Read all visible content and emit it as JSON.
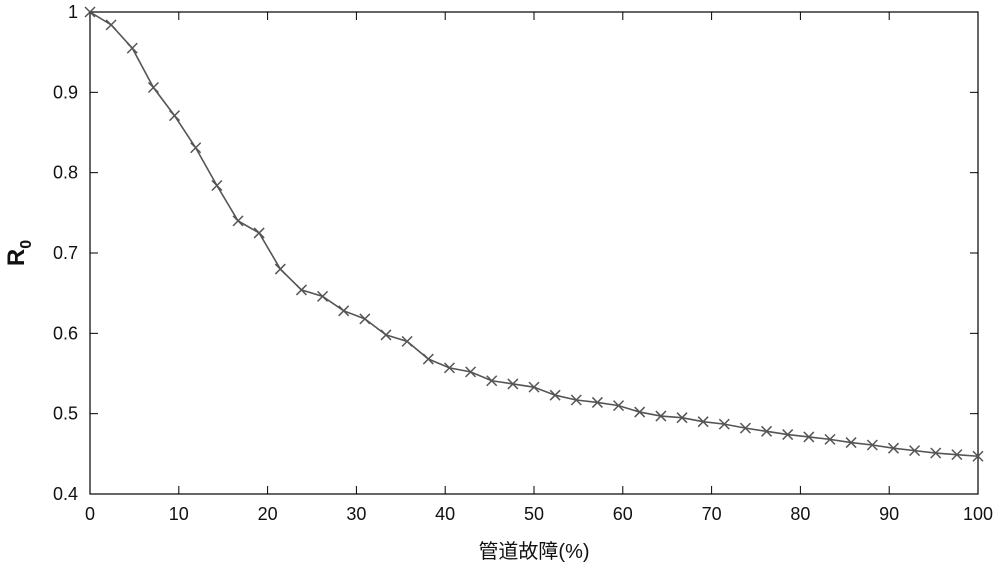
{
  "chart_data": {
    "type": "line",
    "title": "",
    "xlabel": "管道故障(%)",
    "ylabel": {
      "main": "R",
      "subscript": "0"
    },
    "xlim": [
      0,
      100
    ],
    "ylim": [
      0.4,
      1.0
    ],
    "xticks": [
      0,
      10,
      20,
      30,
      40,
      50,
      60,
      70,
      80,
      90,
      100
    ],
    "yticks": [
      0.4,
      0.5,
      0.6,
      0.7,
      0.8,
      0.9,
      1
    ],
    "grid": false,
    "marker": "x",
    "line_color": "#555555",
    "series": [
      {
        "x": [
          0,
          2.38,
          4.76,
          7.14,
          9.52,
          11.9,
          14.29,
          16.67,
          19.05,
          21.43,
          23.81,
          26.19,
          28.57,
          30.95,
          33.33,
          35.71,
          38.1,
          40.48,
          42.86,
          45.24,
          47.62,
          50,
          52.38,
          54.76,
          57.14,
          59.52,
          61.9,
          64.29,
          66.67,
          69.05,
          71.43,
          73.81,
          76.19,
          78.57,
          80.95,
          83.33,
          85.71,
          88.1,
          90.48,
          92.86,
          95.24,
          97.62,
          100
        ],
        "y": [
          1.0,
          0.984,
          0.955,
          0.906,
          0.871,
          0.831,
          0.784,
          0.74,
          0.725,
          0.68,
          0.654,
          0.646,
          0.628,
          0.618,
          0.598,
          0.59,
          0.568,
          0.557,
          0.552,
          0.541,
          0.537,
          0.533,
          0.523,
          0.517,
          0.514,
          0.51,
          0.502,
          0.497,
          0.495,
          0.49,
          0.487,
          0.482,
          0.478,
          0.474,
          0.471,
          0.468,
          0.464,
          0.461,
          0.457,
          0.454,
          0.451,
          0.449,
          0.447
        ]
      }
    ]
  }
}
